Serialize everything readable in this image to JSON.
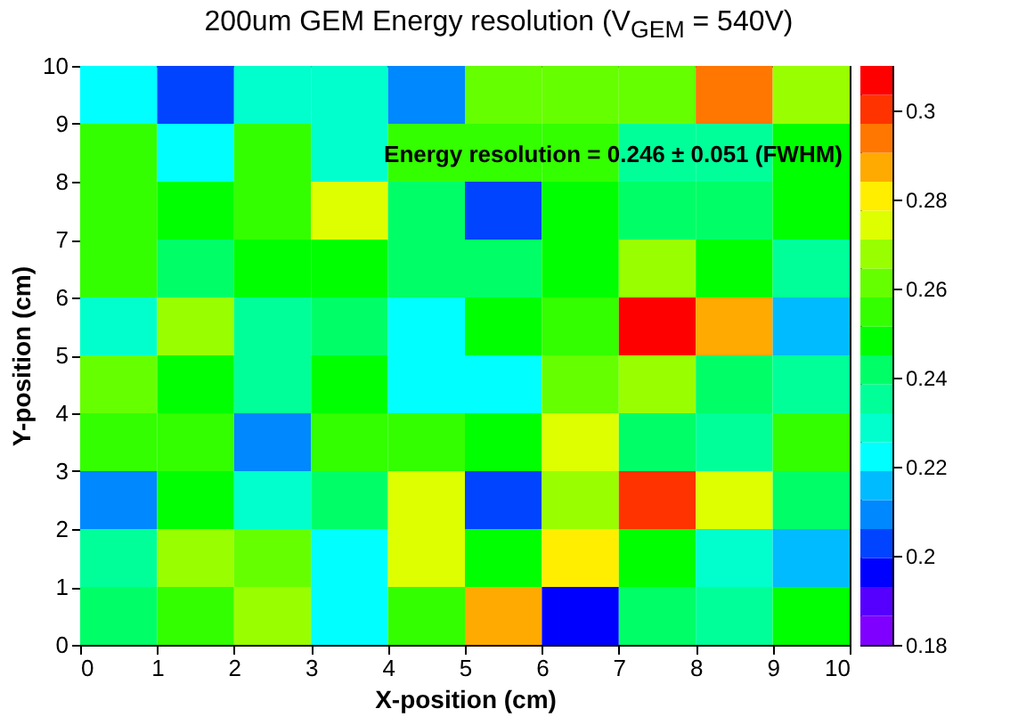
{
  "chart_data": {
    "type": "heatmap",
    "title": "200um GEM Energy resolution (V$_{GEM}$ = 540V)",
    "xlabel": "X-position (cm)",
    "ylabel": "Y-position (cm)",
    "annotations": [
      "Energy resolution = 0.246 ± 0.051 (FWHM)"
    ],
    "xlim": [
      0,
      10
    ],
    "xticks": [
      0,
      1,
      2,
      3,
      4,
      5,
      6,
      7,
      8,
      9,
      10
    ],
    "ylim": [
      0,
      10
    ],
    "yticks": [
      0,
      1,
      2,
      3,
      4,
      5,
      6,
      7,
      8,
      9,
      10
    ],
    "clim": [
      0.18,
      0.31
    ],
    "cticks": [
      0.18,
      0.2,
      0.22,
      0.24,
      0.26,
      0.28,
      0.3
    ],
    "cells": [
      [
        0.222,
        0.203,
        0.229,
        0.229,
        0.209,
        0.261,
        0.261,
        0.261,
        0.294,
        0.268
      ],
      [
        0.255,
        0.222,
        0.255,
        0.229,
        0.255,
        0.255,
        0.255,
        0.235,
        0.235,
        0.248
      ],
      [
        0.255,
        0.248,
        0.255,
        0.274,
        0.242,
        0.203,
        0.248,
        0.242,
        0.242,
        0.248
      ],
      [
        0.255,
        0.242,
        0.248,
        0.248,
        0.242,
        0.242,
        0.248,
        0.268,
        0.248,
        0.235
      ],
      [
        0.229,
        0.268,
        0.235,
        0.242,
        0.222,
        0.248,
        0.255,
        0.307,
        0.287,
        0.216
      ],
      [
        0.261,
        0.248,
        0.235,
        0.248,
        0.222,
        0.222,
        0.261,
        0.268,
        0.242,
        0.235
      ],
      [
        0.255,
        0.255,
        0.209,
        0.255,
        0.255,
        0.248,
        0.274,
        0.242,
        0.235,
        0.255
      ],
      [
        0.209,
        0.248,
        0.229,
        0.242,
        0.274,
        0.203,
        0.268,
        0.3,
        0.274,
        0.242
      ],
      [
        0.235,
        0.268,
        0.261,
        0.222,
        0.274,
        0.248,
        0.281,
        0.248,
        0.229,
        0.216
      ],
      [
        0.242,
        0.255,
        0.268,
        0.222,
        0.255,
        0.287,
        0.196,
        0.242,
        0.235,
        0.248
      ]
    ]
  }
}
